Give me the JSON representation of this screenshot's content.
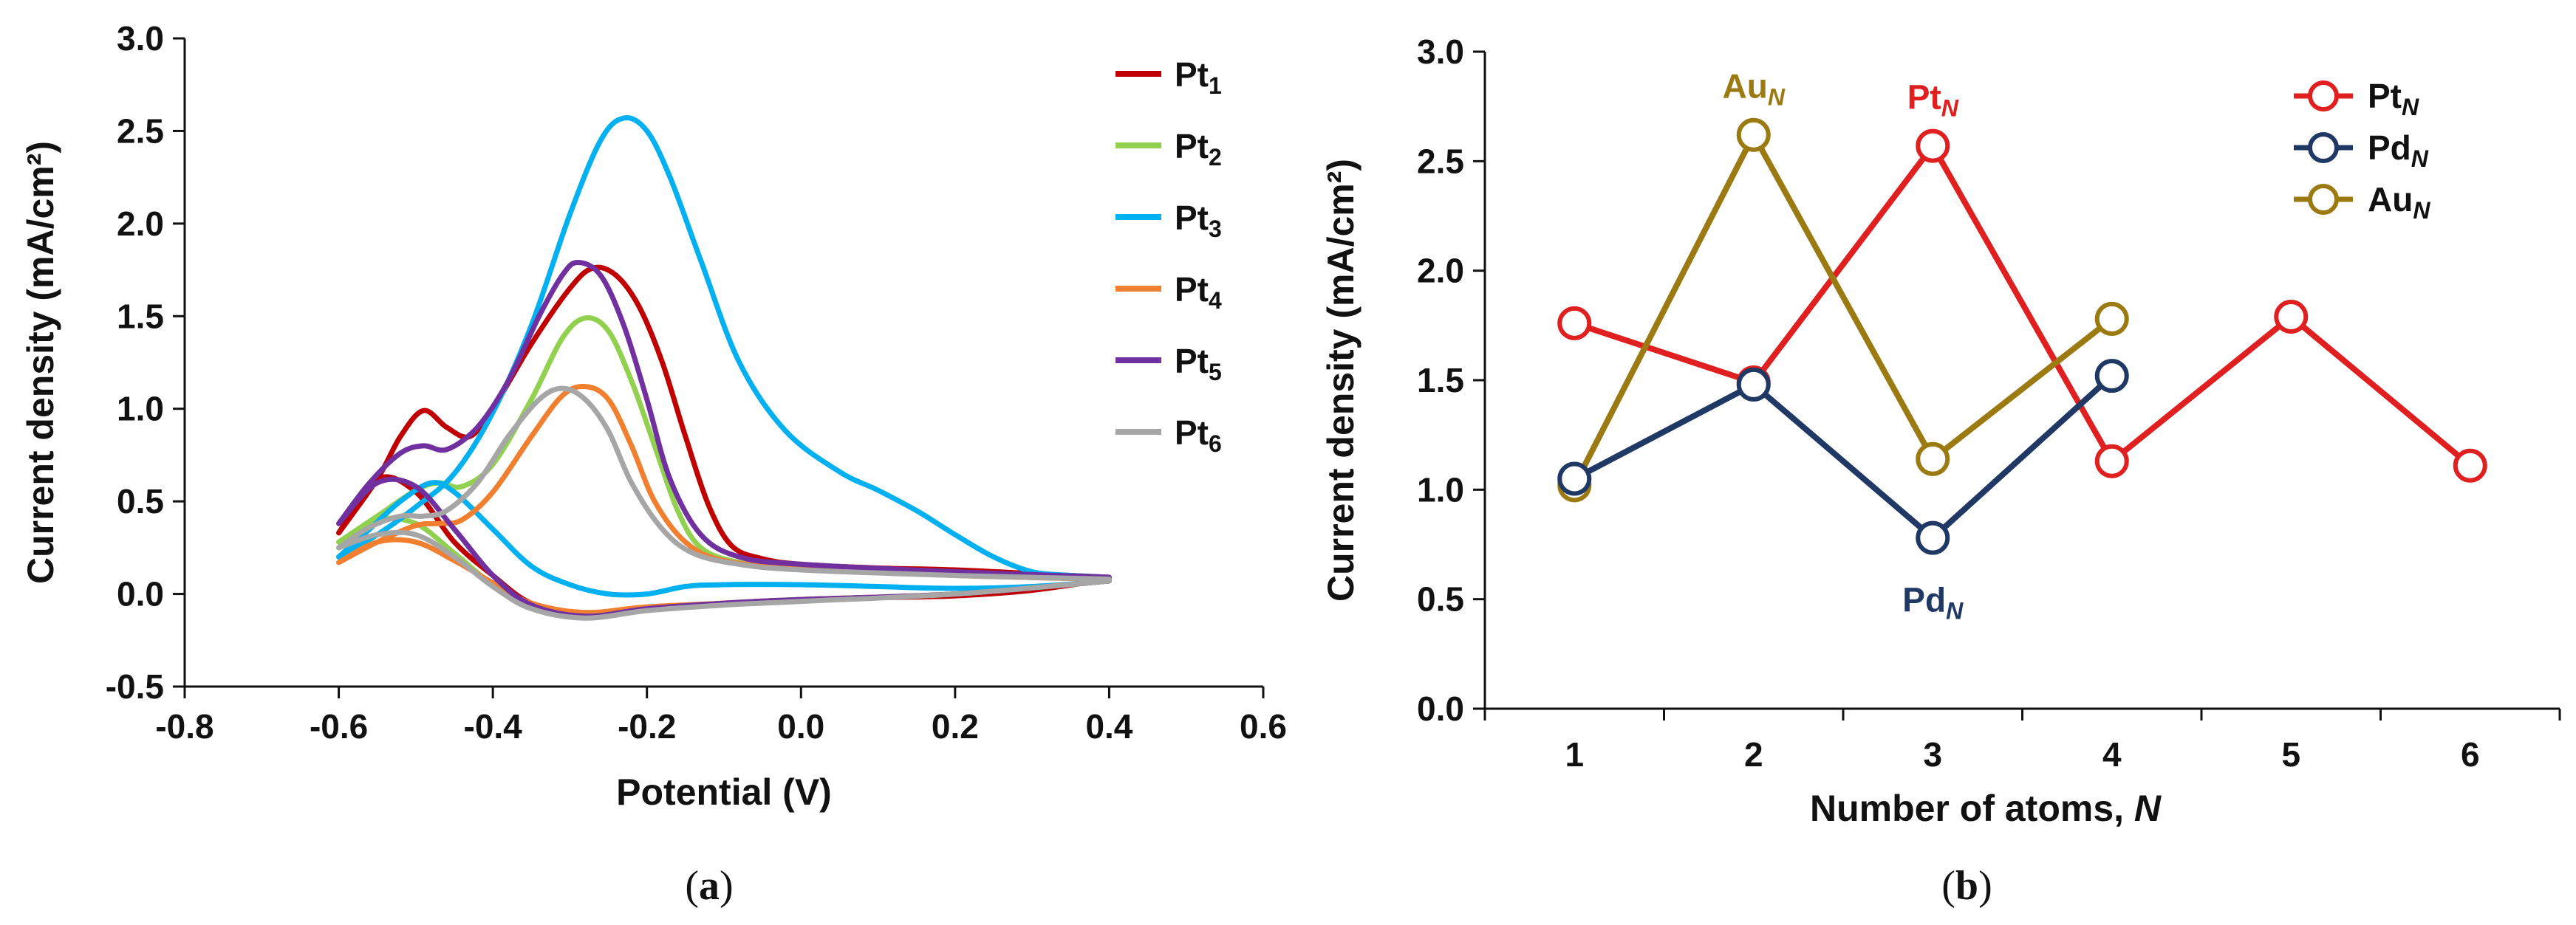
{
  "chart_data": [
    {
      "type": "line",
      "panel_label": {
        "open": "(",
        "letter": "a",
        "close": ")"
      },
      "xlabel": "Potential (V)",
      "ylabel": "Current density (mA/cm²)",
      "xlim": [
        -0.8,
        0.6
      ],
      "ylim": [
        -0.5,
        3.0
      ],
      "xticks": [
        -0.8,
        -0.6,
        -0.4,
        -0.2,
        0.0,
        0.2,
        0.4,
        0.6
      ],
      "xtick_labels": [
        "-0.8",
        "-0.6",
        "-0.4",
        "-0.2",
        "0.0",
        "0.2",
        "0.4",
        "0.6"
      ],
      "yticks": [
        -0.5,
        0.0,
        0.5,
        1.0,
        1.5,
        2.0,
        2.5,
        3.0
      ],
      "ytick_labels": [
        "-0.5",
        "0.0",
        "0.5",
        "1.0",
        "1.5",
        "2.0",
        "2.5",
        "3.0"
      ],
      "legend_position": "right",
      "series": [
        {
          "name": "Pt",
          "subscript": "1",
          "color": "#c00000",
          "forward": [
            [
              -0.6,
              0.33
            ],
            [
              -0.55,
              0.62
            ],
            [
              -0.52,
              0.85
            ],
            [
              -0.49,
              0.99
            ],
            [
              -0.46,
              0.9
            ],
            [
              -0.43,
              0.85
            ],
            [
              -0.4,
              1.0
            ],
            [
              -0.35,
              1.35
            ],
            [
              -0.3,
              1.65
            ],
            [
              -0.27,
              1.76
            ],
            [
              -0.24,
              1.72
            ],
            [
              -0.21,
              1.55
            ],
            [
              -0.18,
              1.25
            ],
            [
              -0.15,
              0.85
            ],
            [
              -0.12,
              0.48
            ],
            [
              -0.09,
              0.26
            ],
            [
              -0.05,
              0.19
            ],
            [
              0.0,
              0.16
            ],
            [
              0.1,
              0.14
            ],
            [
              0.2,
              0.13
            ],
            [
              0.3,
              0.11
            ],
            [
              0.4,
              0.09
            ]
          ],
          "reverse": [
            [
              0.4,
              0.08
            ],
            [
              0.3,
              0.02
            ],
            [
              0.2,
              -0.01
            ],
            [
              0.1,
              -0.02
            ],
            [
              0.0,
              -0.03
            ],
            [
              -0.1,
              -0.05
            ],
            [
              -0.2,
              -0.08
            ],
            [
              -0.28,
              -0.11
            ],
            [
              -0.35,
              -0.05
            ],
            [
              -0.4,
              0.1
            ],
            [
              -0.45,
              0.28
            ],
            [
              -0.5,
              0.55
            ],
            [
              -0.55,
              0.62
            ],
            [
              -0.6,
              0.33
            ]
          ]
        },
        {
          "name": "Pt",
          "subscript": "2",
          "color": "#92d050",
          "forward": [
            [
              -0.6,
              0.28
            ],
            [
              -0.55,
              0.42
            ],
            [
              -0.5,
              0.56
            ],
            [
              -0.47,
              0.6
            ],
            [
              -0.44,
              0.58
            ],
            [
              -0.4,
              0.7
            ],
            [
              -0.35,
              1.05
            ],
            [
              -0.31,
              1.38
            ],
            [
              -0.28,
              1.49
            ],
            [
              -0.25,
              1.42
            ],
            [
              -0.22,
              1.15
            ],
            [
              -0.19,
              0.8
            ],
            [
              -0.16,
              0.45
            ],
            [
              -0.13,
              0.25
            ],
            [
              -0.08,
              0.17
            ],
            [
              0.0,
              0.14
            ],
            [
              0.2,
              0.11
            ],
            [
              0.4,
              0.08
            ]
          ],
          "reverse": [
            [
              0.4,
              0.07
            ],
            [
              0.2,
              0.0
            ],
            [
              0.0,
              -0.03
            ],
            [
              -0.1,
              -0.05
            ],
            [
              -0.2,
              -0.08
            ],
            [
              -0.28,
              -0.1
            ],
            [
              -0.35,
              -0.06
            ],
            [
              -0.4,
              0.05
            ],
            [
              -0.45,
              0.22
            ],
            [
              -0.5,
              0.38
            ],
            [
              -0.55,
              0.4
            ],
            [
              -0.6,
              0.28
            ]
          ]
        },
        {
          "name": "Pt",
          "subscript": "3",
          "color": "#00b0f0",
          "forward": [
            [
              -0.6,
              0.2
            ],
            [
              -0.55,
              0.32
            ],
            [
              -0.5,
              0.47
            ],
            [
              -0.45,
              0.65
            ],
            [
              -0.4,
              0.98
            ],
            [
              -0.35,
              1.45
            ],
            [
              -0.3,
              2.05
            ],
            [
              -0.26,
              2.45
            ],
            [
              -0.23,
              2.57
            ],
            [
              -0.2,
              2.5
            ],
            [
              -0.17,
              2.25
            ],
            [
              -0.13,
              1.8
            ],
            [
              -0.08,
              1.25
            ],
            [
              -0.02,
              0.88
            ],
            [
              0.05,
              0.66
            ],
            [
              0.1,
              0.56
            ],
            [
              0.15,
              0.45
            ],
            [
              0.2,
              0.32
            ],
            [
              0.25,
              0.2
            ],
            [
              0.3,
              0.12
            ],
            [
              0.35,
              0.1
            ],
            [
              0.4,
              0.09
            ]
          ],
          "reverse": [
            [
              0.4,
              0.07
            ],
            [
              0.3,
              0.04
            ],
            [
              0.2,
              0.03
            ],
            [
              0.1,
              0.04
            ],
            [
              0.0,
              0.05
            ],
            [
              -0.1,
              0.05
            ],
            [
              -0.15,
              0.04
            ],
            [
              -0.2,
              0.0
            ],
            [
              -0.25,
              0.0
            ],
            [
              -0.3,
              0.05
            ],
            [
              -0.35,
              0.15
            ],
            [
              -0.4,
              0.35
            ],
            [
              -0.45,
              0.55
            ],
            [
              -0.48,
              0.6
            ],
            [
              -0.52,
              0.5
            ],
            [
              -0.56,
              0.35
            ],
            [
              -0.6,
              0.2
            ]
          ]
        },
        {
          "name": "Pt",
          "subscript": "4",
          "color": "#f08030",
          "forward": [
            [
              -0.6,
              0.17
            ],
            [
              -0.55,
              0.28
            ],
            [
              -0.5,
              0.37
            ],
            [
              -0.47,
              0.38
            ],
            [
              -0.44,
              0.4
            ],
            [
              -0.4,
              0.55
            ],
            [
              -0.35,
              0.85
            ],
            [
              -0.31,
              1.07
            ],
            [
              -0.28,
              1.12
            ],
            [
              -0.25,
              1.05
            ],
            [
              -0.22,
              0.8
            ],
            [
              -0.19,
              0.5
            ],
            [
              -0.15,
              0.28
            ],
            [
              -0.1,
              0.18
            ],
            [
              0.0,
              0.14
            ],
            [
              0.2,
              0.1
            ],
            [
              0.4,
              0.08
            ]
          ],
          "reverse": [
            [
              0.4,
              0.07
            ],
            [
              0.2,
              0.0
            ],
            [
              0.0,
              -0.03
            ],
            [
              -0.1,
              -0.05
            ],
            [
              -0.2,
              -0.07
            ],
            [
              -0.28,
              -0.1
            ],
            [
              -0.35,
              -0.05
            ],
            [
              -0.4,
              0.06
            ],
            [
              -0.45,
              0.18
            ],
            [
              -0.5,
              0.28
            ],
            [
              -0.55,
              0.28
            ],
            [
              -0.6,
              0.17
            ]
          ]
        },
        {
          "name": "Pt",
          "subscript": "5",
          "color": "#7030a0",
          "forward": [
            [
              -0.6,
              0.38
            ],
            [
              -0.56,
              0.6
            ],
            [
              -0.52,
              0.76
            ],
            [
              -0.49,
              0.8
            ],
            [
              -0.46,
              0.78
            ],
            [
              -0.42,
              0.9
            ],
            [
              -0.38,
              1.15
            ],
            [
              -0.34,
              1.5
            ],
            [
              -0.31,
              1.72
            ],
            [
              -0.29,
              1.79
            ],
            [
              -0.26,
              1.72
            ],
            [
              -0.23,
              1.45
            ],
            [
              -0.2,
              1.05
            ],
            [
              -0.17,
              0.62
            ],
            [
              -0.13,
              0.32
            ],
            [
              -0.08,
              0.2
            ],
            [
              0.0,
              0.16
            ],
            [
              0.2,
              0.12
            ],
            [
              0.4,
              0.09
            ]
          ],
          "reverse": [
            [
              0.4,
              0.07
            ],
            [
              0.2,
              0.0
            ],
            [
              0.0,
              -0.03
            ],
            [
              -0.1,
              -0.05
            ],
            [
              -0.2,
              -0.08
            ],
            [
              -0.28,
              -0.12
            ],
            [
              -0.35,
              -0.06
            ],
            [
              -0.4,
              0.1
            ],
            [
              -0.45,
              0.35
            ],
            [
              -0.5,
              0.58
            ],
            [
              -0.55,
              0.6
            ],
            [
              -0.6,
              0.38
            ]
          ]
        },
        {
          "name": "Pt",
          "subscript": "6",
          "color": "#a6a6a6",
          "forward": [
            [
              -0.6,
              0.25
            ],
            [
              -0.56,
              0.36
            ],
            [
              -0.52,
              0.42
            ],
            [
              -0.49,
              0.42
            ],
            [
              -0.46,
              0.45
            ],
            [
              -0.42,
              0.6
            ],
            [
              -0.38,
              0.85
            ],
            [
              -0.34,
              1.05
            ],
            [
              -0.31,
              1.11
            ],
            [
              -0.28,
              1.05
            ],
            [
              -0.25,
              0.88
            ],
            [
              -0.22,
              0.6
            ],
            [
              -0.18,
              0.35
            ],
            [
              -0.14,
              0.22
            ],
            [
              -0.08,
              0.16
            ],
            [
              0.0,
              0.13
            ],
            [
              0.2,
              0.1
            ],
            [
              0.4,
              0.08
            ]
          ],
          "reverse": [
            [
              0.4,
              0.07
            ],
            [
              0.2,
              0.0
            ],
            [
              0.0,
              -0.04
            ],
            [
              -0.1,
              -0.06
            ],
            [
              -0.2,
              -0.09
            ],
            [
              -0.28,
              -0.13
            ],
            [
              -0.35,
              -0.08
            ],
            [
              -0.4,
              0.04
            ],
            [
              -0.45,
              0.2
            ],
            [
              -0.5,
              0.32
            ],
            [
              -0.55,
              0.32
            ],
            [
              -0.6,
              0.25
            ]
          ]
        }
      ]
    },
    {
      "type": "line",
      "panel_label": {
        "open": "(",
        "letter": "b",
        "close": ")"
      },
      "xlabel_prefix": "Number of atoms, ",
      "xlabel_italic": "N",
      "ylabel": "Current density (mA/cm²)",
      "xlim": [
        0.5,
        6.5
      ],
      "ylim": [
        0.0,
        3.0
      ],
      "categories": [
        "1",
        "2",
        "3",
        "4",
        "5",
        "6"
      ],
      "yticks": [
        0.0,
        0.5,
        1.0,
        1.5,
        2.0,
        2.5,
        3.0
      ],
      "ytick_labels": [
        "0.0",
        "0.5",
        "1.0",
        "1.5",
        "2.0",
        "2.5",
        "3.0"
      ],
      "legend_position": "top-right",
      "marker": "open-circle",
      "series": [
        {
          "name": "Pt",
          "subscript": "N",
          "color": "#e02020",
          "x": [
            1,
            2,
            3,
            4,
            5,
            6
          ],
          "values": [
            1.76,
            1.49,
            2.57,
            1.13,
            1.79,
            1.11
          ]
        },
        {
          "name": "Pd",
          "subscript": "N",
          "color": "#1f3864",
          "x": [
            1,
            2,
            3,
            4
          ],
          "values": [
            1.05,
            1.48,
            0.78,
            1.52
          ]
        },
        {
          "name": "Au",
          "subscript": "N",
          "color": "#9c7a12",
          "x": [
            1,
            2,
            3,
            4
          ],
          "values": [
            1.02,
            2.62,
            1.14,
            1.78
          ]
        }
      ],
      "annotations": [
        {
          "name": "Au",
          "subscript": "N",
          "color": "#9c7a12",
          "x": 2,
          "y": 2.62,
          "pos": "above"
        },
        {
          "name": "Pt",
          "subscript": "N",
          "color": "#e02020",
          "x": 3,
          "y": 2.57,
          "pos": "above"
        },
        {
          "name": "Pd",
          "subscript": "N",
          "color": "#1f3864",
          "x": 3,
          "y": 0.78,
          "pos": "below"
        }
      ]
    }
  ]
}
